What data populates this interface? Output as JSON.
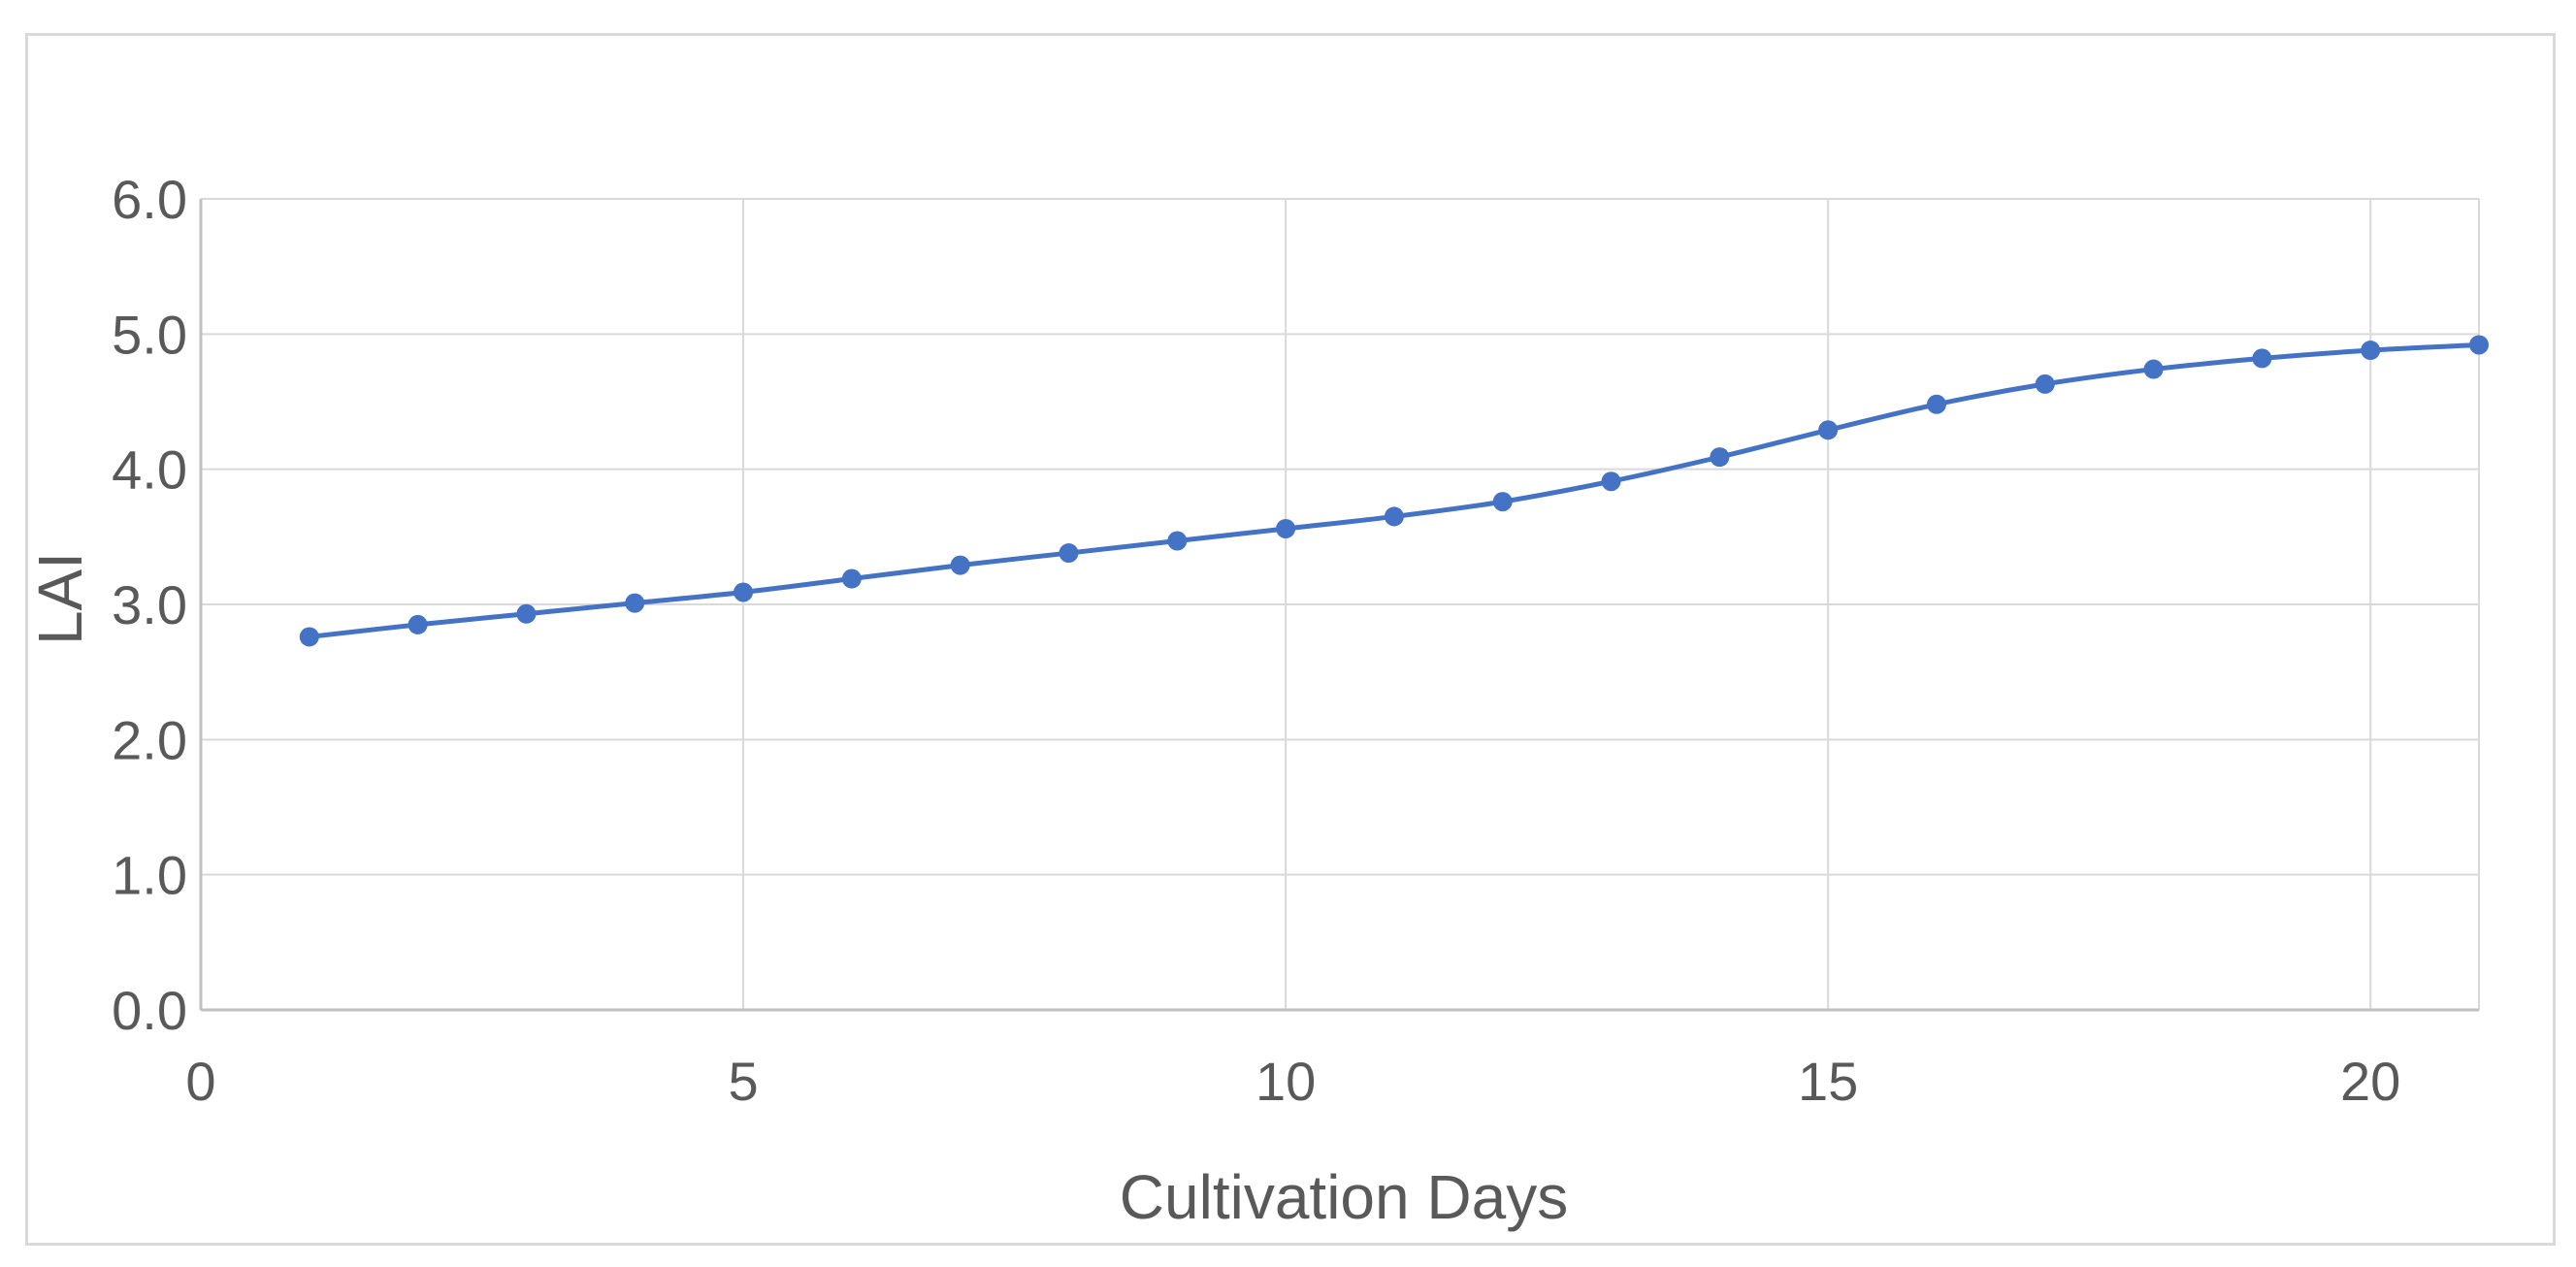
{
  "chart_data": {
    "type": "scatter",
    "xlabel": "Cultivation Days",
    "ylabel": "LAI",
    "xlim": [
      0,
      21
    ],
    "ylim": [
      0,
      6
    ],
    "x_ticks": [
      0,
      5,
      10,
      15,
      20
    ],
    "x_tick_labels": [
      "0",
      "5",
      "10",
      "15",
      "20"
    ],
    "y_ticks": [
      0,
      1,
      2,
      3,
      4,
      5,
      6
    ],
    "y_tick_labels": [
      "0.0",
      "1.0",
      "2.0",
      "3.0",
      "4.0",
      "5.0",
      "6.0"
    ],
    "grid": true,
    "legend": "none",
    "series": [
      {
        "color": "#4472c4",
        "smooth": true,
        "markers": true,
        "x": [
          1,
          2,
          3,
          4,
          5,
          6,
          7,
          8,
          9,
          10,
          11,
          12,
          13,
          14,
          15,
          16,
          17,
          18,
          19,
          20,
          21
        ],
        "y": [
          2.76,
          2.85,
          2.93,
          3.01,
          3.09,
          3.19,
          3.29,
          3.38,
          3.47,
          3.56,
          3.65,
          3.76,
          3.91,
          4.09,
          4.29,
          4.48,
          4.63,
          4.74,
          4.82,
          4.88,
          4.92
        ]
      }
    ]
  },
  "colors": {
    "gridline": "#d9d9d9",
    "axis_line": "#bfbfbf",
    "text": "#595959",
    "frame": "#d9d9d9"
  }
}
